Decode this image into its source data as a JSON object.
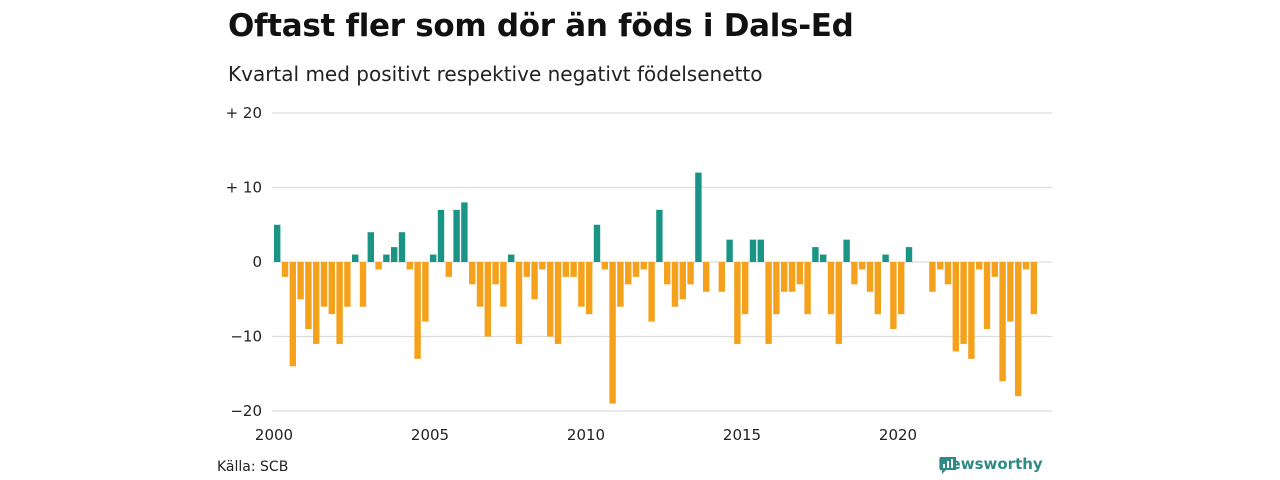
{
  "title": "Oftast fler som dör än föds i Dals-Ed",
  "subtitle": "Kvartal med positivt respektive negativt födelsenetto",
  "source": "Källa: SCB",
  "brand": {
    "name": "Newsworthy",
    "icon": "newsworthy-logo-icon",
    "color": "#2f8a86"
  },
  "colors": {
    "positive": "#1a9585",
    "negative": "#f5a11c",
    "grid": "#dcdcdc"
  },
  "chart_data": {
    "type": "bar",
    "title": "Oftast fler som dör än föds i Dals-Ed",
    "subtitle": "Kvartal med positivt respektive negativt födelsenetto",
    "x_ticks": [
      "2000",
      "2005",
      "2010",
      "2015",
      "2020"
    ],
    "y_ticks": [
      {
        "value": 20,
        "label": "+ 20"
      },
      {
        "value": 10,
        "label": "+ 10"
      },
      {
        "value": 0,
        "label": "0"
      },
      {
        "value": -10,
        "label": "−10"
      },
      {
        "value": -20,
        "label": "−20"
      }
    ],
    "ylim": [
      -20,
      20
    ],
    "start_year": 2000,
    "grid": true,
    "quarter_values": [
      5,
      -2,
      -14,
      -5,
      -9,
      -11,
      -6,
      -7,
      -11,
      -6,
      1,
      -6,
      4,
      -1,
      1,
      2,
      4,
      -1,
      -13,
      -8,
      1,
      7,
      -2,
      7,
      8,
      -3,
      -6,
      -10,
      -3,
      -6,
      1,
      -11,
      -2,
      -5,
      -1,
      -10,
      -11,
      -2,
      -2,
      -6,
      -7,
      5,
      -1,
      -19,
      -6,
      -3,
      -2,
      -1,
      -8,
      7,
      -3,
      -6,
      -5,
      -3,
      12,
      -4,
      0,
      -4,
      3,
      -11,
      -7,
      3,
      3,
      -11,
      -7,
      -4,
      -4,
      -3,
      -7,
      2,
      1,
      -7,
      -11,
      3,
      -3,
      -1,
      -4,
      -7,
      1,
      -9,
      -7,
      2,
      0,
      0,
      -4,
      -1,
      -3,
      -12,
      -11,
      -13,
      -1,
      -9,
      -2,
      -16,
      -8,
      -18,
      -1,
      -7
    ]
  }
}
